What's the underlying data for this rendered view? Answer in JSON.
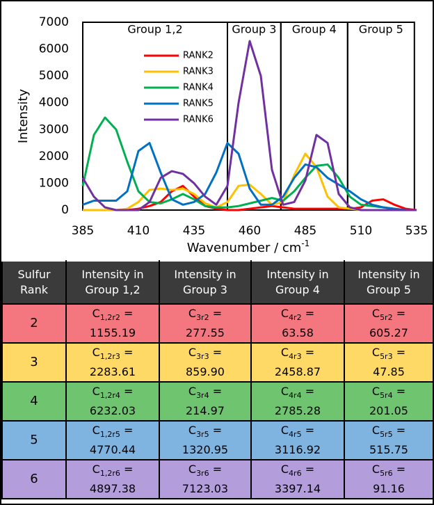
{
  "chart_data": {
    "type": "line",
    "ylabel": "Intensity",
    "xlabel": {
      "text": "Wavenumber / cm",
      "sup": "-1"
    },
    "xlim": [
      385,
      535
    ],
    "xticks": [
      385,
      410,
      435,
      460,
      485,
      510,
      535
    ],
    "ylim": [
      0,
      7000
    ],
    "yticks": [
      0,
      1000,
      2000,
      3000,
      4000,
      5000,
      6000,
      7000
    ],
    "grid": false,
    "groups": [
      {
        "label": "Group 1,2",
        "range": [
          385,
          450
        ]
      },
      {
        "label": "Group 3",
        "range": [
          450,
          474
        ]
      },
      {
        "label": "Group 4",
        "range": [
          474,
          504
        ]
      },
      {
        "label": "Group 5",
        "range": [
          504,
          534
        ]
      }
    ],
    "x": [
      385,
      390,
      395,
      400,
      405,
      410,
      415,
      420,
      425,
      430,
      435,
      440,
      445,
      450,
      455,
      460,
      465,
      470,
      475,
      480,
      485,
      490,
      495,
      500,
      505,
      510,
      515,
      520,
      525,
      530,
      535
    ],
    "series": [
      {
        "name": "RANK2",
        "color": "#ff0000",
        "values": [
          0,
          0,
          0,
          0,
          0,
          50,
          150,
          300,
          700,
          900,
          500,
          150,
          50,
          0,
          0,
          50,
          100,
          150,
          100,
          50,
          50,
          50,
          50,
          50,
          50,
          100,
          350,
          400,
          200,
          50,
          0
        ]
      },
      {
        "name": "RANK3",
        "color": "#ffc000",
        "values": [
          0,
          0,
          0,
          0,
          50,
          300,
          750,
          800,
          750,
          800,
          600,
          250,
          100,
          300,
          900,
          950,
          600,
          200,
          300,
          1300,
          2100,
          1600,
          500,
          100,
          50,
          0,
          0,
          0,
          0,
          0,
          0
        ]
      },
      {
        "name": "RANK4",
        "color": "#00b050",
        "values": [
          900,
          2800,
          3450,
          3000,
          1800,
          700,
          300,
          250,
          400,
          600,
          400,
          150,
          100,
          100,
          150,
          250,
          350,
          450,
          350,
          700,
          1200,
          1650,
          1700,
          1200,
          500,
          200,
          150,
          100,
          50,
          0,
          0
        ]
      },
      {
        "name": "RANK5",
        "color": "#0070c0",
        "values": [
          200,
          350,
          350,
          350,
          700,
          2200,
          2500,
          1400,
          400,
          200,
          300,
          600,
          1400,
          2500,
          2100,
          800,
          200,
          200,
          500,
          1200,
          1700,
          1600,
          1200,
          950,
          700,
          400,
          200,
          100,
          50,
          0,
          0
        ]
      },
      {
        "name": "RANK6",
        "color": "#7030a0",
        "values": [
          1200,
          500,
          100,
          0,
          0,
          0,
          300,
          1200,
          1450,
          1350,
          1000,
          500,
          200,
          900,
          4000,
          6300,
          5000,
          1500,
          200,
          300,
          1100,
          2800,
          2500,
          600,
          100,
          0,
          0,
          0,
          0,
          0,
          0
        ]
      }
    ]
  },
  "table": {
    "header": [
      "Sulfur Rank",
      "Intensity in Group 1,2",
      "Intensity in Group 3",
      "Intensity in Group 4",
      "Intensity in Group 5"
    ],
    "rows": [
      {
        "rank": "2",
        "color": "#f4777f",
        "cells": [
          {
            "base": "C",
            "sub": "1,2r2",
            "eq": "=",
            "value": "1155.19"
          },
          {
            "base": "C",
            "sub": "3r2",
            "eq": "=",
            "value": "277.55"
          },
          {
            "base": "C",
            "sub": "4r2",
            "eq": "=",
            "value": "63.58"
          },
          {
            "base": "C",
            "sub": "5r2",
            "eq": "=",
            "value": "605.27"
          }
        ]
      },
      {
        "rank": "3",
        "color": "#ffd966",
        "cells": [
          {
            "base": "C",
            "sub": "1,2r3",
            "eq": "=",
            "value": "2283.61"
          },
          {
            "base": "C",
            "sub": "3r3",
            "eq": "=",
            "value": "859.90"
          },
          {
            "base": "C",
            "sub": "4r3",
            "eq": "=",
            "value": "2458.87"
          },
          {
            "base": "C",
            "sub": "5r3",
            "eq": "=",
            "value": "47.85"
          }
        ]
      },
      {
        "rank": "4",
        "color": "#6fc46f",
        "cells": [
          {
            "base": "C",
            "sub": "1,2r4",
            "eq": "=",
            "value": "6232.03"
          },
          {
            "base": "C",
            "sub": "3r4",
            "eq": "=",
            "value": "214.97"
          },
          {
            "base": "C",
            "sub": "4r4",
            "eq": "=",
            "value": "2785.28"
          },
          {
            "base": "C",
            "sub": "5r4",
            "eq": "=",
            "value": "201.05"
          }
        ]
      },
      {
        "rank": "5",
        "color": "#7fb3e0",
        "cells": [
          {
            "base": "C",
            "sub": "1,2r5",
            "eq": "=",
            "value": "4770.44"
          },
          {
            "base": "C",
            "sub": "3r5",
            "eq": "=",
            "value": "1320.95"
          },
          {
            "base": "C",
            "sub": "4r5",
            "eq": "=",
            "value": "3116.92"
          },
          {
            "base": "C",
            "sub": "5r5",
            "eq": "=",
            "value": "515.75"
          }
        ]
      },
      {
        "rank": "6",
        "color": "#b39ddb",
        "cells": [
          {
            "base": "C",
            "sub": "1,2r6",
            "eq": "=",
            "value": "4897.38"
          },
          {
            "base": "C",
            "sub": "3r6",
            "eq": "=",
            "value": "7123.03"
          },
          {
            "base": "C",
            "sub": "4r6",
            "eq": "=",
            "value": "3397.14"
          },
          {
            "base": "C",
            "sub": "5r6",
            "eq": "=",
            "value": "91.16"
          }
        ]
      }
    ]
  }
}
